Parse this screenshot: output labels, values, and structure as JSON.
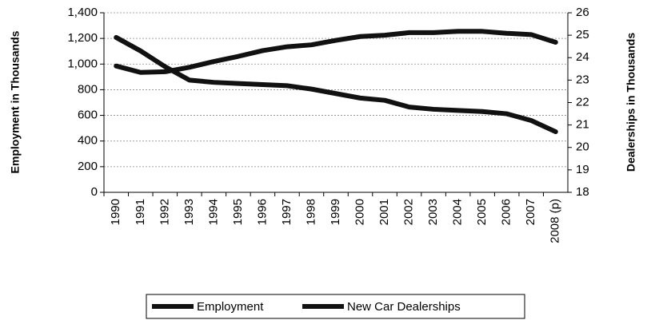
{
  "chart_data": {
    "type": "line",
    "y_label": "Employment in Thousands",
    "y2_label": "Dealerships in Thousands",
    "categories": [
      "1990",
      "1991",
      "1992",
      "1993",
      "1994",
      "1995",
      "1996",
      "1997",
      "1998",
      "1999",
      "2000",
      "2001",
      "2002",
      "2003",
      "2004",
      "2005",
      "2006",
      "2007",
      "2008 (p)"
    ],
    "series": [
      {
        "name": "Employment",
        "color": "#111111",
        "values": [
          985,
          935,
          940,
          975,
          1020,
          1060,
          1105,
          1135,
          1150,
          1185,
          1215,
          1225,
          1245,
          1245,
          1255,
          1255,
          1240,
          1230,
          1170
        ]
      },
      {
        "name": "New Car Dealerships",
        "color": "#111111",
        "axis": "y2",
        "values": [
          24.9,
          24.3,
          23.6,
          23.0,
          22.9,
          22.85,
          22.8,
          22.75,
          22.6,
          22.4,
          22.2,
          22.1,
          21.8,
          21.7,
          21.65,
          21.6,
          21.5,
          21.2,
          20.7
        ]
      }
    ],
    "ylim": [
      0,
      1400
    ],
    "yticks": [
      0,
      200,
      400,
      600,
      800,
      {
        "value": 1000,
        "label": "1,000"
      },
      {
        "value": 1200,
        "label": "1,200"
      },
      {
        "value": 1400,
        "label": "1,400"
      }
    ],
    "y2lim": [
      18,
      26
    ],
    "y2ticks": [
      18,
      19,
      20,
      21,
      22,
      23,
      24,
      25,
      26
    ],
    "grid": true,
    "legend": "bottom"
  }
}
